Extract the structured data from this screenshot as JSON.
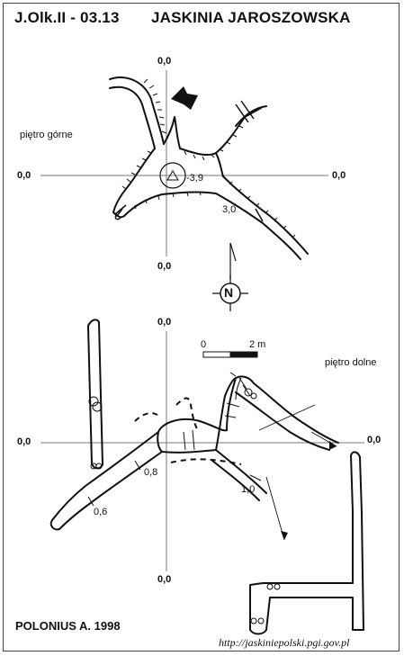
{
  "header": {
    "code": "J.Olk.II - 03.13",
    "name": "JASKINIA JAROSZOWSKA"
  },
  "upper_level": {
    "label": "piętro górne",
    "axis_top": "0,0",
    "axis_bottom": "0,0",
    "axis_left": "0,0",
    "axis_right": "0,0",
    "depth_a": "-3,9",
    "depth_b": "3,0"
  },
  "north": {
    "letter": "N"
  },
  "scale": {
    "start": "0",
    "end": "2 m"
  },
  "lower_level": {
    "label": "piętro dolne",
    "axis_top": "0,0",
    "axis_bottom": "0,0",
    "axis_left": "0,0",
    "axis_right": "0,0",
    "depth_a": "0,8",
    "depth_b": "0,6",
    "depth_c": "1,0"
  },
  "footer": {
    "author": "POLONIUS A. 1998",
    "url": "http://jaskiniepolski.pgi.gov.pl"
  }
}
